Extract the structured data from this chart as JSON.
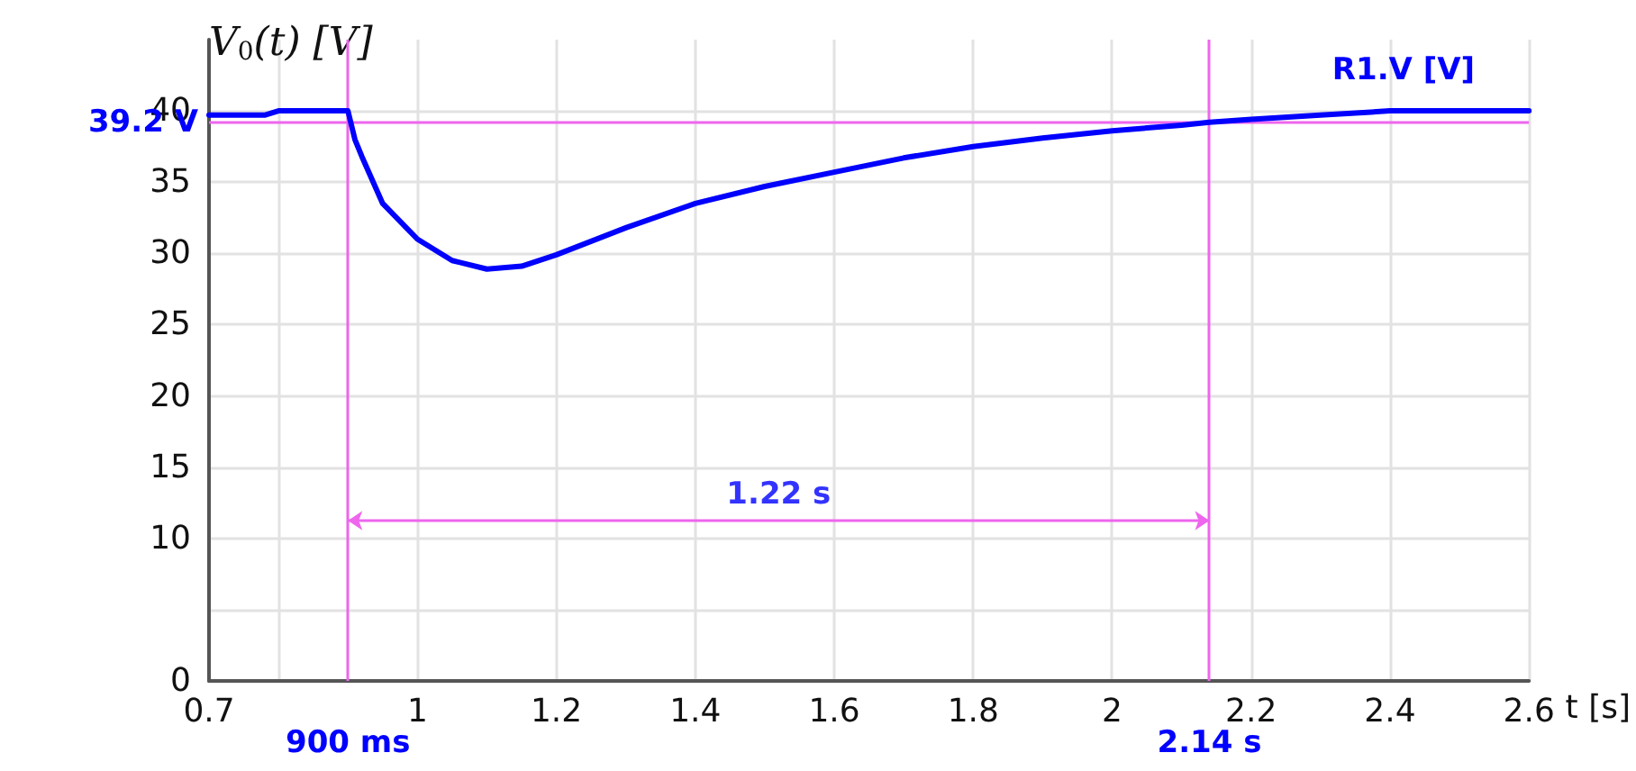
{
  "chart_data": {
    "type": "line",
    "xlabel": "t [s]",
    "ylabel": "V$_{0}$(t) [V]",
    "xlim": [
      0.7,
      2.6
    ],
    "xticks": [
      0.7,
      {
        "value": 0.8,
        "label": null
      },
      1,
      1.2,
      1.4,
      1.6,
      1.8,
      2,
      2.2,
      2.4,
      2.6
    ],
    "ylim": [
      0,
      45
    ],
    "yticks": [
      0,
      {
        "value": 5,
        "label": null
      },
      10,
      15,
      20,
      25,
      30,
      35,
      40
    ],
    "series": [
      {
        "name": "R1.V [V]",
        "color": "#0000ff",
        "x": [
          0.7,
          0.78,
          0.8,
          0.9,
          0.91,
          0.92,
          0.95,
          1.0,
          1.05,
          1.1,
          1.15,
          1.2,
          1.3,
          1.4,
          1.5,
          1.6,
          1.7,
          1.8,
          1.9,
          2.0,
          2.1,
          2.14,
          2.2,
          2.3,
          2.4,
          2.6
        ],
        "values": [
          39.7,
          39.7,
          40,
          40,
          38,
          36.8,
          33.5,
          31,
          29.5,
          28.9,
          29.1,
          29.9,
          31.8,
          33.5,
          34.7,
          35.7,
          36.7,
          37.5,
          38.1,
          38.6,
          39,
          39.2,
          39.4,
          39.7,
          40,
          40
        ]
      }
    ],
    "ref_lines": [
      {
        "axis": "y",
        "value": 39.2,
        "label": "39.2 V",
        "color": "#ee66ee"
      },
      {
        "axis": "x",
        "value": 0.9,
        "label": "900 ms",
        "color": "#ee66ee"
      },
      {
        "axis": "x",
        "value": 2.14,
        "label": "2.14 s",
        "color": "#ee66ee"
      }
    ],
    "annotations": [
      "1.22 s"
    ],
    "grid": true,
    "marker": "none",
    "line_style": "solid"
  }
}
